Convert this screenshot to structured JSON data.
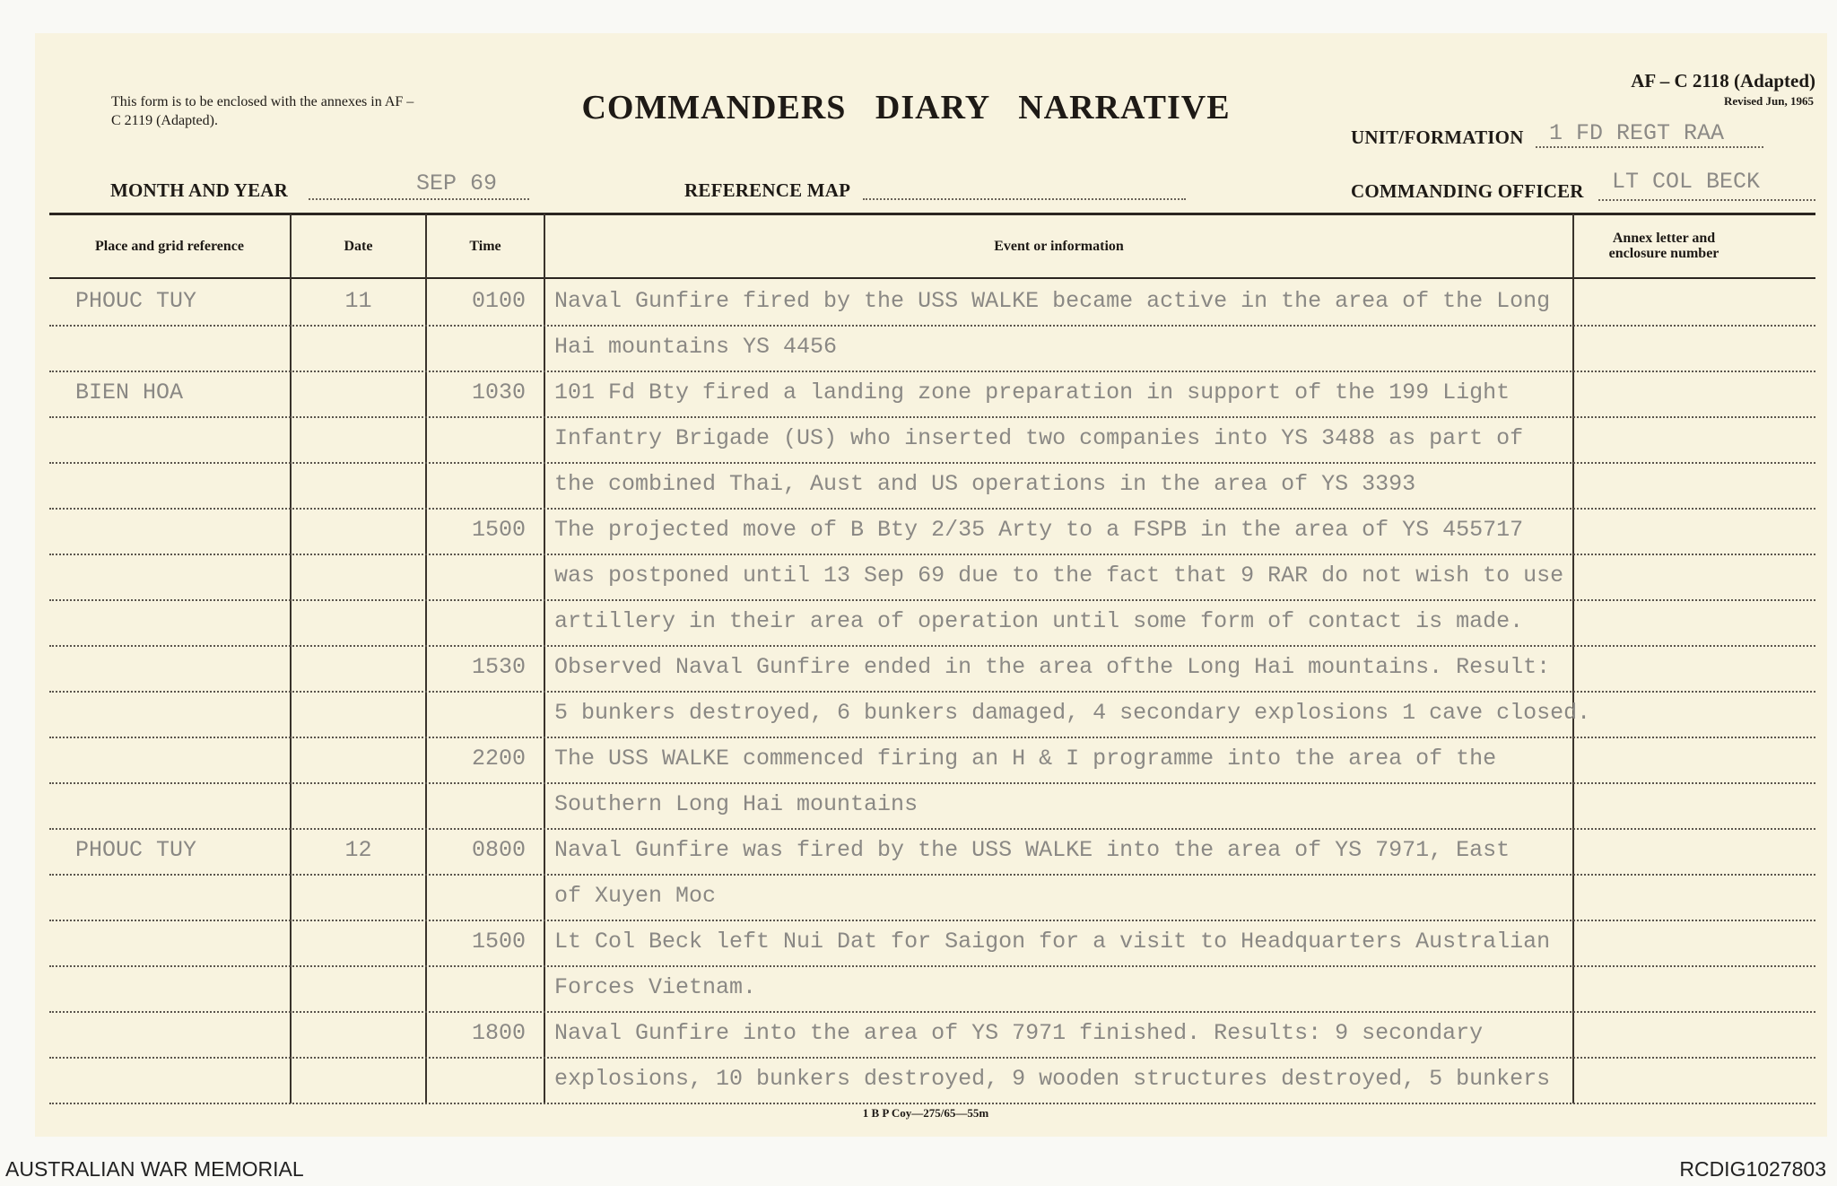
{
  "form": {
    "note": "This form is to be enclosed with the annexes in AF – C 2119 (Adapted).",
    "title": "COMMANDERS DIARY NARRATIVE",
    "form_number": "AF – C 2118 (Adapted)",
    "revised": "Revised Jun, 1965",
    "unit_label": "UNIT/FORMATION",
    "unit_value": "1 FD REGT RAA",
    "month_label": "MONTH AND YEAR",
    "month_value": "SEP 69",
    "map_label": "REFERENCE MAP",
    "map_value": "",
    "co_label": "COMMANDING OFFICER",
    "co_value": "LT COL BECK",
    "footer": "1 B P Coy—275/65—55m"
  },
  "table": {
    "headers": [
      "Place and grid reference",
      "Date",
      "Time",
      "Event or information",
      "Annex letter and enclosure number"
    ],
    "rows": [
      {
        "place": "PHOUC TUY",
        "date": "11",
        "time": "0100",
        "text": "Naval Gunfire fired by the USS WALKE became active in the area of the Long"
      },
      {
        "place": "",
        "date": "",
        "time": "",
        "text": "Hai mountains YS 4456"
      },
      {
        "place": "BIEN HOA",
        "date": "",
        "time": "1030",
        "text": "101 Fd Bty fired a landing zone preparation in support of the 199 Light"
      },
      {
        "place": "",
        "date": "",
        "time": "",
        "text": "Infantry Brigade (US) who inserted two companies into YS 3488 as part of"
      },
      {
        "place": "",
        "date": "",
        "time": "",
        "text": "the combined Thai, Aust and US operations in the area of YS 3393"
      },
      {
        "place": "",
        "date": "",
        "time": "1500",
        "text": "The projected move of B Bty 2/35 Arty to a FSPB in the area of YS 455717"
      },
      {
        "place": "",
        "date": "",
        "time": "",
        "text": "was postponed until 13 Sep 69 due to the fact that 9 RAR do not wish to use"
      },
      {
        "place": "",
        "date": "",
        "time": "",
        "text": "artillery in their area of operation until some form of contact is made."
      },
      {
        "place": "",
        "date": "",
        "time": "1530",
        "text": "Observed Naval Gunfire ended in the area ofthe Long Hai mountains.  Result:"
      },
      {
        "place": "",
        "date": "",
        "time": "",
        "text": "5 bunkers destroyed, 6 bunkers damaged, 4 secondary explosions 1 cave closed."
      },
      {
        "place": "",
        "date": "",
        "time": "2200",
        "text": "The USS WALKE commenced firing an H & I programme into the area of the"
      },
      {
        "place": "",
        "date": "",
        "time": "",
        "text": "Southern Long Hai mountains"
      },
      {
        "place": "PHOUC TUY",
        "date": "12",
        "time": "0800",
        "text": "Naval Gunfire was fired by the USS WALKE into the area of YS 7971, East"
      },
      {
        "place": "",
        "date": "",
        "time": "",
        "text": "of Xuyen Moc"
      },
      {
        "place": "",
        "date": "",
        "time": "1500",
        "text": "Lt Col Beck left Nui Dat for Saigon for a visit to Headquarters Australian"
      },
      {
        "place": "",
        "date": "",
        "time": "",
        "text": "Forces Vietnam."
      },
      {
        "place": "",
        "date": "",
        "time": "1800",
        "text": "Naval Gunfire into the area of YS 7971 finished.  Results:  9 secondary"
      },
      {
        "place": "",
        "date": "",
        "time": "",
        "text": "explosions, 10 bunkers destroyed, 9 wooden structures destroyed, 5 bunkers"
      }
    ]
  },
  "archive": {
    "institution": "AUSTRALIAN WAR MEMORIAL",
    "record_id": "RCDIG1027803"
  }
}
